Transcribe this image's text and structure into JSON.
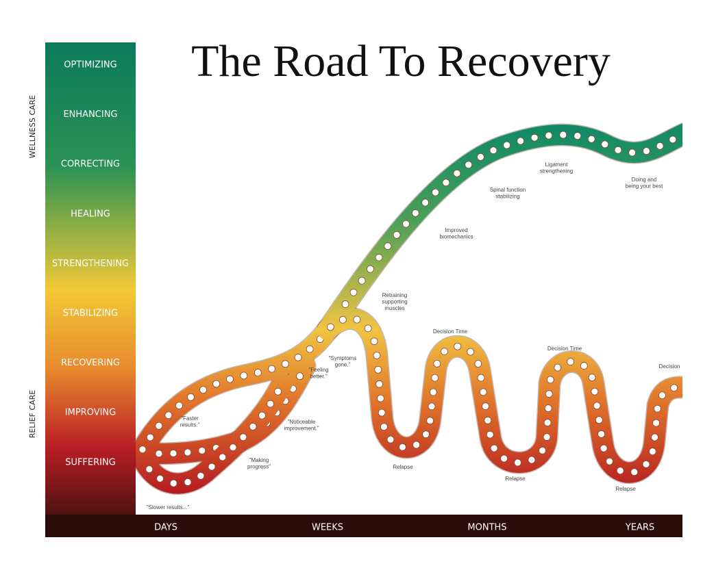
{
  "title": "The Road To Recovery",
  "levels": [
    "OPTIMIZING",
    "ENHANCING",
    "CORRECTING",
    "HEALING",
    "STRENGTHENING",
    "STABILIZING",
    "RECOVERING",
    "IMPROVING",
    "SUFFERING"
  ],
  "side_labels": [
    "WELLNESS CARE",
    "RELIEF CARE"
  ],
  "time_labels": [
    "DAYS",
    "WEEKS",
    "MONTHS",
    "YEARS"
  ],
  "annotations": [
    {
      "lines": [
        "\"Slower results...\""
      ]
    },
    {
      "lines": [
        "\"Faster",
        "results.\""
      ]
    },
    {
      "lines": [
        "\"Making",
        "progress\""
      ]
    },
    {
      "lines": [
        "\"Noticeable",
        "improvement.\""
      ]
    },
    {
      "lines": [
        "\"Feeling",
        "better.\""
      ]
    },
    {
      "lines": [
        "\"Symptoms",
        "gone.\""
      ]
    },
    {
      "lines": [
        "Retraining",
        "supporting",
        "muscles"
      ]
    },
    {
      "lines": [
        "Improved",
        "biomechanics"
      ]
    },
    {
      "lines": [
        "Spinal function",
        "stabilizing"
      ]
    },
    {
      "lines": [
        "Ligament",
        "strengthening"
      ]
    },
    {
      "lines": [
        "Doing and",
        "being your best"
      ]
    },
    {
      "lines": [
        "Decision Time"
      ]
    },
    {
      "lines": [
        "Decision Time"
      ]
    },
    {
      "lines": [
        "Decision"
      ]
    },
    {
      "lines": [
        "Relapse"
      ]
    },
    {
      "lines": [
        "Relapse"
      ]
    },
    {
      "lines": [
        "Relapse"
      ]
    }
  ]
}
